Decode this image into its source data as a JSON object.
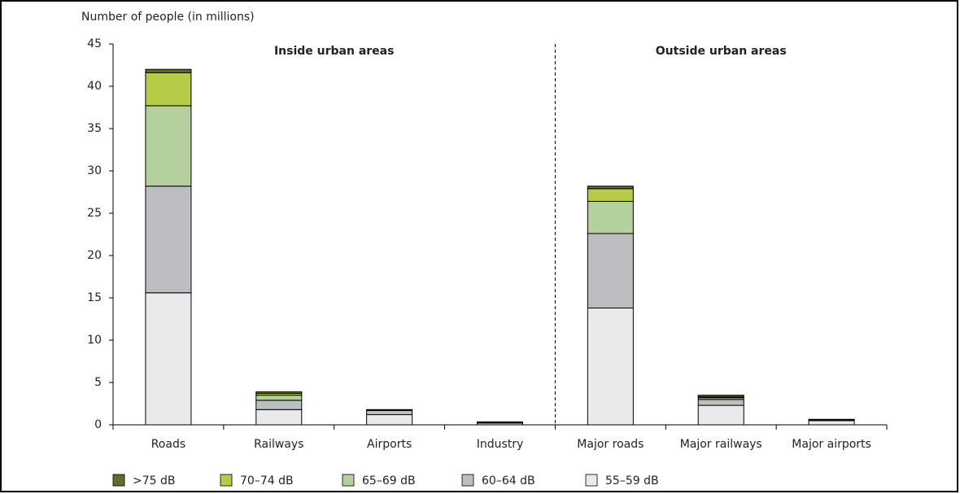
{
  "chart_data": {
    "type": "stacked-bar",
    "y_label": "Number of people (in millions)",
    "annotations": [
      "Inside urban areas",
      "Outside urban areas"
    ],
    "categories": [
      "Roads",
      "Railways",
      "Airports",
      "Industry",
      "Major roads",
      "Major railways",
      "Major airports"
    ],
    "series": [
      {
        "name": ">75 dB",
        "color": "#5b6e2a",
        "values": [
          0.4,
          0.2,
          0,
          0,
          0.3,
          0.2,
          0
        ]
      },
      {
        "name": "70–74 dB",
        "color": "#b6cb48",
        "values": [
          3.9,
          0.2,
          0.05,
          0,
          1.5,
          0.1,
          0
        ]
      },
      {
        "name": "65–69 dB",
        "color": "#b4d09c",
        "values": [
          9.5,
          0.6,
          0.05,
          0.05,
          3.8,
          0.2,
          0.05
        ]
      },
      {
        "name": "60–64 dB",
        "color": "#bdbec1",
        "values": [
          12.6,
          1.1,
          0.5,
          0.1,
          8.8,
          0.7,
          0.1
        ]
      },
      {
        "name": "55–59 dB",
        "color": "#e9eaec",
        "values": [
          15.6,
          1.8,
          1.2,
          0.2,
          13.8,
          2.3,
          0.5
        ]
      }
    ],
    "ylim": [
      0,
      45
    ],
    "yticks": [
      0,
      5,
      10,
      15,
      20,
      25,
      30,
      35,
      40,
      45
    ],
    "grid": false
  }
}
